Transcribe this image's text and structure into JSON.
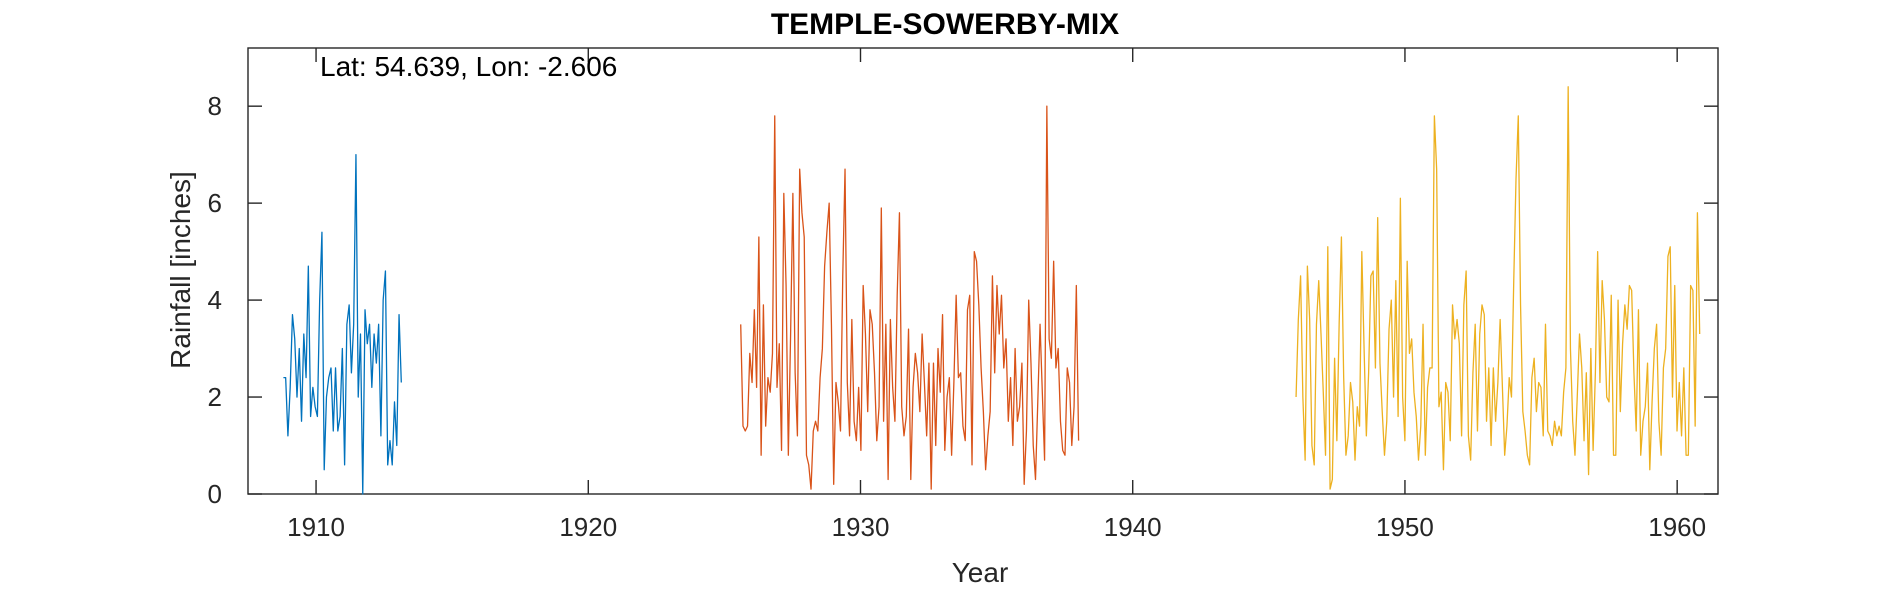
{
  "chart_data": {
    "type": "line",
    "title": "TEMPLE-SOWERBY-MIX",
    "xlabel": "Year",
    "ylabel": "Rainfall [inches]",
    "annotation": "Lat: 54.639, Lon: -2.606",
    "xlim": [
      1907.5,
      1961.5
    ],
    "ylim": [
      0,
      9.2
    ],
    "xticks": [
      1910,
      1920,
      1930,
      1940,
      1950,
      1960
    ],
    "yticks": [
      0,
      2,
      4,
      6,
      8
    ],
    "grid": false,
    "legend": "none",
    "series": [
      {
        "color": "#0072BD",
        "start": 1908.8,
        "step": 0.0833,
        "values": [
          2.4,
          2.4,
          1.2,
          2.2,
          3.7,
          3.2,
          2.0,
          3.0,
          1.5,
          3.3,
          2.4,
          4.7,
          1.6,
          2.2,
          1.8,
          1.6,
          4.0,
          5.4,
          0.5,
          2.0,
          2.4,
          2.6,
          1.3,
          2.6,
          1.3,
          1.6,
          3.0,
          0.6,
          3.5,
          3.9,
          2.5,
          3.5,
          7.0,
          2.0,
          3.3,
          0.0,
          3.8,
          3.1,
          3.5,
          2.2,
          3.3,
          2.7,
          3.5,
          1.2,
          4.0,
          4.6,
          0.6,
          1.1,
          0.6,
          1.9,
          1.0,
          3.7,
          2.3
        ]
      },
      {
        "color": "#D95319",
        "start": 1925.6,
        "step": 0.0833,
        "values": [
          3.5,
          1.4,
          1.3,
          1.4,
          2.9,
          2.3,
          3.8,
          2.2,
          5.3,
          0.8,
          3.9,
          1.4,
          2.4,
          2.1,
          2.9,
          7.8,
          2.2,
          3.1,
          0.9,
          6.2,
          4.3,
          0.8,
          3.3,
          6.2,
          2.5,
          1.2,
          6.7,
          5.8,
          5.3,
          0.8,
          0.6,
          0.1,
          1.3,
          1.5,
          1.3,
          2.4,
          3.0,
          4.7,
          5.4,
          6.0,
          3.5,
          0.2,
          2.3,
          1.9,
          1.3,
          4.5,
          6.7,
          2.3,
          1.2,
          3.6,
          1.5,
          1.1,
          2.2,
          0.9,
          4.3,
          3.3,
          1.7,
          3.8,
          3.5,
          2.5,
          1.1,
          1.8,
          5.9,
          1.5,
          3.5,
          0.3,
          3.6,
          2.2,
          1.5,
          4.1,
          5.8,
          1.8,
          1.2,
          1.6,
          3.4,
          0.3,
          2.2,
          2.9,
          2.5,
          1.7,
          3.3,
          2.3,
          1.2,
          2.7,
          0.1,
          2.7,
          1.0,
          3.0,
          2.1,
          3.7,
          0.9,
          2.0,
          2.4,
          0.8,
          2.3,
          4.1,
          2.4,
          2.5,
          1.4,
          1.1,
          3.8,
          4.1,
          0.6,
          5.0,
          4.8,
          3.9,
          2.6,
          1.7,
          0.5,
          1.2,
          1.7,
          4.5,
          2.5,
          4.3,
          3.3,
          4.1,
          2.6,
          3.2,
          1.5,
          2.4,
          1.0,
          3.0,
          1.5,
          1.8,
          2.7,
          0.2,
          1.3,
          4.0,
          2.7,
          1.0,
          0.3,
          1.9,
          3.5,
          2.1,
          0.7,
          8.0,
          3.2,
          2.8,
          4.8,
          2.6,
          3.0,
          1.5,
          0.9,
          0.8,
          2.6,
          2.3,
          1.0,
          1.8,
          4.3,
          1.1
        ]
      },
      {
        "color": "#EDB120",
        "start": 1946.0,
        "step": 0.0833,
        "values": [
          2.0,
          3.6,
          4.5,
          2.0,
          0.7,
          4.7,
          3.6,
          1.0,
          0.6,
          3.5,
          4.4,
          3.3,
          2.1,
          0.8,
          5.1,
          0.1,
          0.3,
          2.8,
          1.1,
          3.5,
          5.3,
          2.4,
          0.8,
          1.2,
          2.3,
          1.9,
          0.7,
          1.8,
          1.4,
          5.0,
          3.0,
          1.2,
          2.5,
          4.5,
          4.6,
          2.6,
          5.7,
          2.7,
          1.7,
          0.8,
          1.5,
          3.4,
          4.0,
          2.0,
          4.4,
          1.6,
          6.1,
          2.0,
          1.1,
          4.8,
          2.9,
          3.2,
          2.1,
          1.6,
          0.7,
          1.4,
          3.5,
          0.8,
          2.2,
          2.6,
          2.6,
          7.8,
          6.7,
          1.8,
          2.1,
          0.5,
          2.3,
          2.1,
          1.1,
          3.9,
          3.2,
          3.6,
          3.1,
          1.2,
          3.9,
          4.6,
          1.2,
          0.7,
          2.5,
          3.5,
          1.3,
          3.3,
          3.9,
          3.7,
          1.5,
          2.6,
          1.0,
          2.6,
          1.5,
          2.3,
          3.6,
          2.2,
          0.8,
          1.4,
          2.4,
          2.0,
          4.4,
          6.5,
          7.8,
          3.9,
          1.7,
          1.3,
          0.8,
          0.6,
          2.4,
          2.8,
          1.7,
          2.3,
          2.2,
          1.2,
          3.5,
          1.3,
          1.2,
          1.0,
          1.5,
          1.2,
          1.4,
          1.2,
          2.1,
          2.6,
          8.4,
          3.0,
          1.5,
          0.8,
          2.0,
          3.3,
          2.6,
          1.1,
          2.5,
          0.4,
          3.0,
          0.9,
          2.5,
          5.0,
          2.3,
          4.4,
          3.6,
          2.0,
          1.9,
          4.1,
          0.8,
          0.8,
          4.0,
          1.7,
          3.1,
          3.9,
          3.4,
          4.3,
          4.2,
          2.5,
          1.3,
          3.8,
          0.8,
          1.5,
          1.8,
          2.7,
          0.5,
          1.9,
          3.0,
          3.5,
          1.5,
          0.8,
          2.6,
          3.0,
          4.9,
          5.1,
          2.0,
          4.3,
          1.3,
          2.3,
          1.2,
          2.6,
          0.8,
          0.8,
          4.3,
          4.2,
          1.4,
          5.8,
          3.3
        ]
      }
    ]
  }
}
